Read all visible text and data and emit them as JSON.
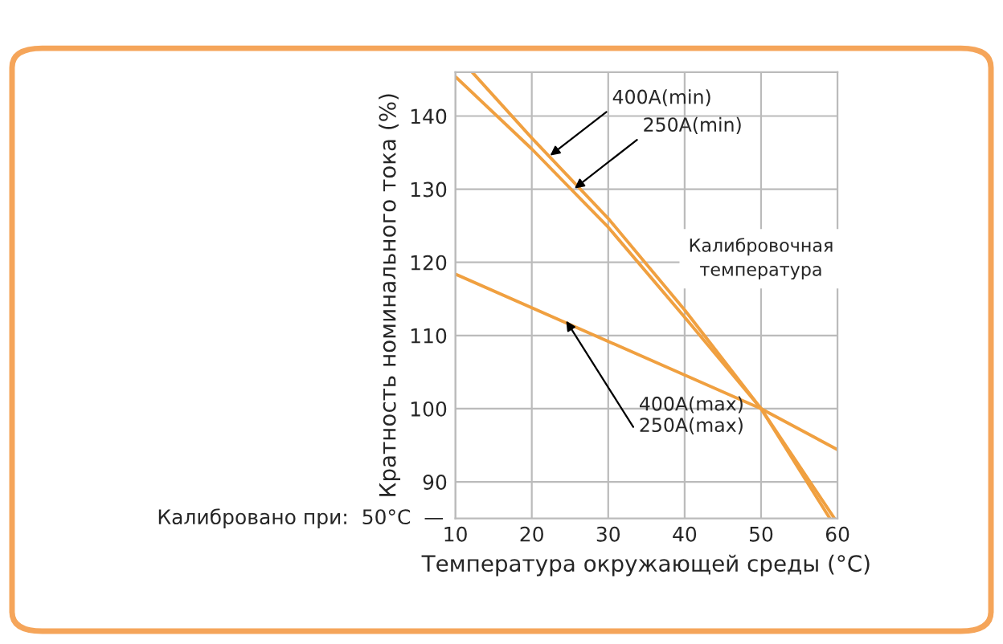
{
  "chart_data": {
    "type": "line",
    "xlabel": "Температура окружающей среды (°C)",
    "ylabel": "Кратность номинального тока (%)",
    "series": [
      {
        "color": "#f0a040",
        "x": [
          12.2,
          20,
          30,
          40,
          50,
          59.6
        ],
        "values": [
          146,
          137,
          126,
          113.5,
          100,
          85
        ]
      },
      {
        "color": "#f0a040",
        "x": [
          10,
          20,
          30,
          40,
          50,
          59
        ],
        "values": [
          145.4,
          135.5,
          124.8,
          112.5,
          100,
          85
        ]
      },
      {
        "color": "#f0a040",
        "x": [
          10,
          50,
          60
        ],
        "values": [
          118.4,
          100,
          94.4
        ]
      }
    ],
    "annotations": [
      {
        "text": "400A(min)",
        "x": 22.4,
        "y": 134.6
      },
      {
        "text": "250A(min)",
        "x": 25.6,
        "y": 130.1
      },
      "Калибровочная\nтемпература",
      {
        "text": "400A(max)\n250A(max)",
        "x": 24.5,
        "y": 112
      },
      "Калибровано при:  50°C  —"
    ],
    "xlim": [
      10,
      60
    ],
    "ylim": [
      85,
      146
    ],
    "xticks": [
      10,
      20,
      30,
      40,
      50,
      60
    ],
    "yticks": [
      90,
      100,
      110,
      120,
      130,
      140
    ],
    "grid": true,
    "marker": "none",
    "line_style": "solid"
  }
}
